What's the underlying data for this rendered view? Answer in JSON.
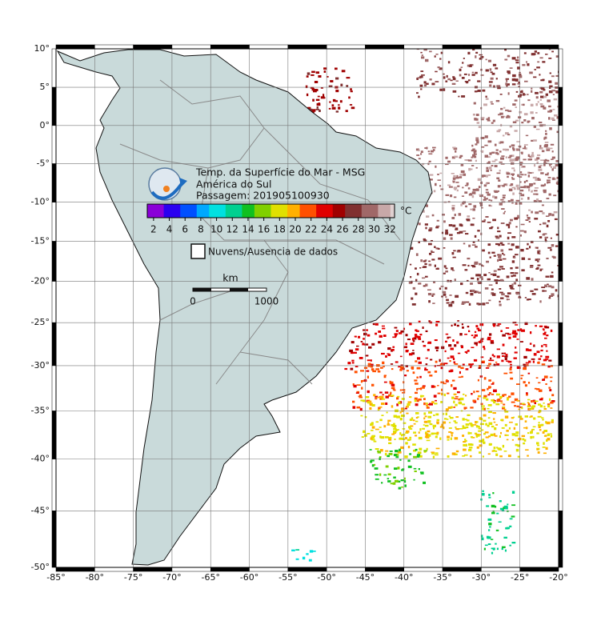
{
  "map": {
    "title_lines": [
      "Temp. da Superfície do Mar - MSG",
      "América do Sul",
      "Passagem: 201905100930"
    ],
    "colorbar": {
      "unit": "°C",
      "range": [
        1.2,
        32.6
      ],
      "ticks": [
        2,
        4,
        6,
        8,
        10,
        12,
        14,
        16,
        18,
        20,
        22,
        24,
        26,
        28,
        30,
        32
      ],
      "colors": [
        "#8a00d8",
        "#2a00f0",
        "#0050ff",
        "#00a8ff",
        "#00e0e0",
        "#00d090",
        "#10c020",
        "#80d000",
        "#e0e000",
        "#ffb000",
        "#ff5000",
        "#e00000",
        "#a00000",
        "#803030",
        "#a06868",
        "#c8a8a8",
        "#e0d0d0"
      ]
    },
    "legend": "Nuvens/Ausencia de dados",
    "scale": {
      "unit": "km",
      "start": 0,
      "end": 1000
    },
    "lon_ticks": [
      {
        "value": -85,
        "label": "-85°"
      },
      {
        "value": -80,
        "label": "-80°"
      },
      {
        "value": -75,
        "label": "-75°"
      },
      {
        "value": -70,
        "label": "-70°"
      },
      {
        "value": -65,
        "label": "-65°"
      },
      {
        "value": -60,
        "label": "-60°"
      },
      {
        "value": -55,
        "label": "-55°"
      },
      {
        "value": -50,
        "label": "-50°"
      },
      {
        "value": -45,
        "label": "-45°"
      },
      {
        "value": -40,
        "label": "-40°"
      },
      {
        "value": -35,
        "label": "-35°"
      },
      {
        "value": -30,
        "label": "-30°"
      },
      {
        "value": -25,
        "label": "-25°"
      },
      {
        "value": -20,
        "label": "-20°"
      }
    ],
    "lat_ticks": [
      {
        "value": 10,
        "label": "10°"
      },
      {
        "value": 5,
        "label": "5°"
      },
      {
        "value": 0,
        "label": "0°"
      },
      {
        "value": -5,
        "label": "-5°"
      },
      {
        "value": -10,
        "label": "-10°"
      },
      {
        "value": -15,
        "label": "-15°"
      },
      {
        "value": -20,
        "label": "-20°"
      },
      {
        "value": -25,
        "label": "-25°"
      },
      {
        "value": -30,
        "label": "-30°"
      },
      {
        "value": -35,
        "label": "-35°"
      },
      {
        "value": -40,
        "label": "-40°"
      },
      {
        "value": -45,
        "label": "-45°"
      },
      {
        "value": -50,
        "label": "-50°"
      }
    ]
  }
}
